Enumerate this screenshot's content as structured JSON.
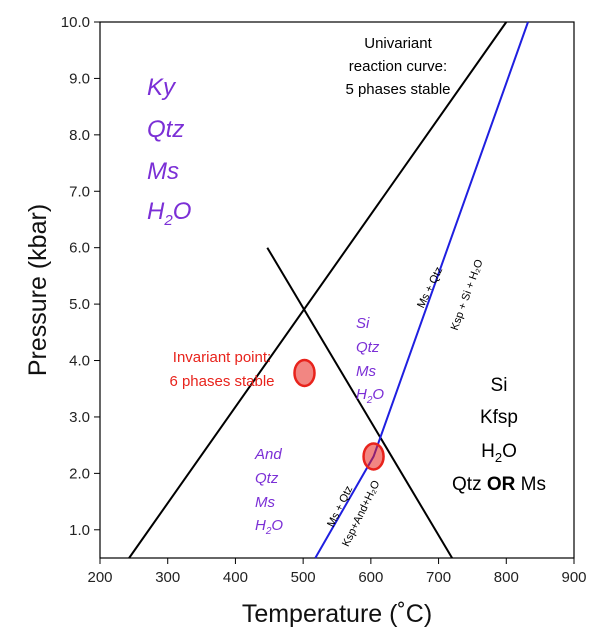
{
  "chart_data": {
    "type": "line",
    "title": "",
    "xlabel": "Temperature (˚C)",
    "ylabel": "Pressure (kbar)",
    "xlim": [
      200,
      900
    ],
    "ylim": [
      0.5,
      10.0
    ],
    "x_ticks": [
      "200",
      "300",
      "400",
      "500",
      "600",
      "700",
      "800",
      "900"
    ],
    "y_ticks": [
      "1.0",
      "2.0",
      "3.0",
      "4.0",
      "5.0",
      "6.0",
      "7.0",
      "8.0",
      "9.0",
      "10.0"
    ],
    "series": [
      {
        "color": "#000000",
        "x": [
          243,
          800
        ],
        "y": [
          0.5,
          10.0
        ]
      },
      {
        "color": "#000000",
        "x": [
          447,
          720
        ],
        "y": [
          6.0,
          0.5
        ]
      },
      {
        "color": "#1f1fe0",
        "x": [
          518,
          604,
          832
        ],
        "y": [
          0.5,
          2.3,
          10.0
        ]
      }
    ],
    "points": [
      {
        "x": 502,
        "y": 3.78,
        "color": "#e8231c"
      },
      {
        "x": 604,
        "y": 2.3,
        "color": "#e8231c"
      }
    ],
    "fields": {
      "ky": [
        "Ky",
        "Qtz",
        "Ms",
        "H",
        "2",
        "O"
      ],
      "si": [
        "Si",
        "Qtz",
        "Ms",
        "H",
        "2",
        "O"
      ],
      "and": [
        "And",
        "Qtz",
        "Ms",
        "H",
        "2",
        "O"
      ],
      "right": {
        "l1": "Si",
        "l2": "Kfsp",
        "l3a": "H",
        "l3b": "2",
        "l3c": "O",
        "l4a": "Qtz ",
        "l4b": "OR",
        "l4c": " Ms"
      }
    },
    "annotations": {
      "univariant": [
        "Univariant",
        "reaction curve:",
        "5 phases stable"
      ],
      "invariant": [
        "Invariant point:",
        "6 phases stable"
      ],
      "curve_labels": {
        "upper_black": "Ms + Qtz",
        "upper_blue": "Ksp + Si + H₂O",
        "lower_black": "Ms + Qtz",
        "lower_blue": "Ksp+And+H₂O"
      }
    }
  }
}
